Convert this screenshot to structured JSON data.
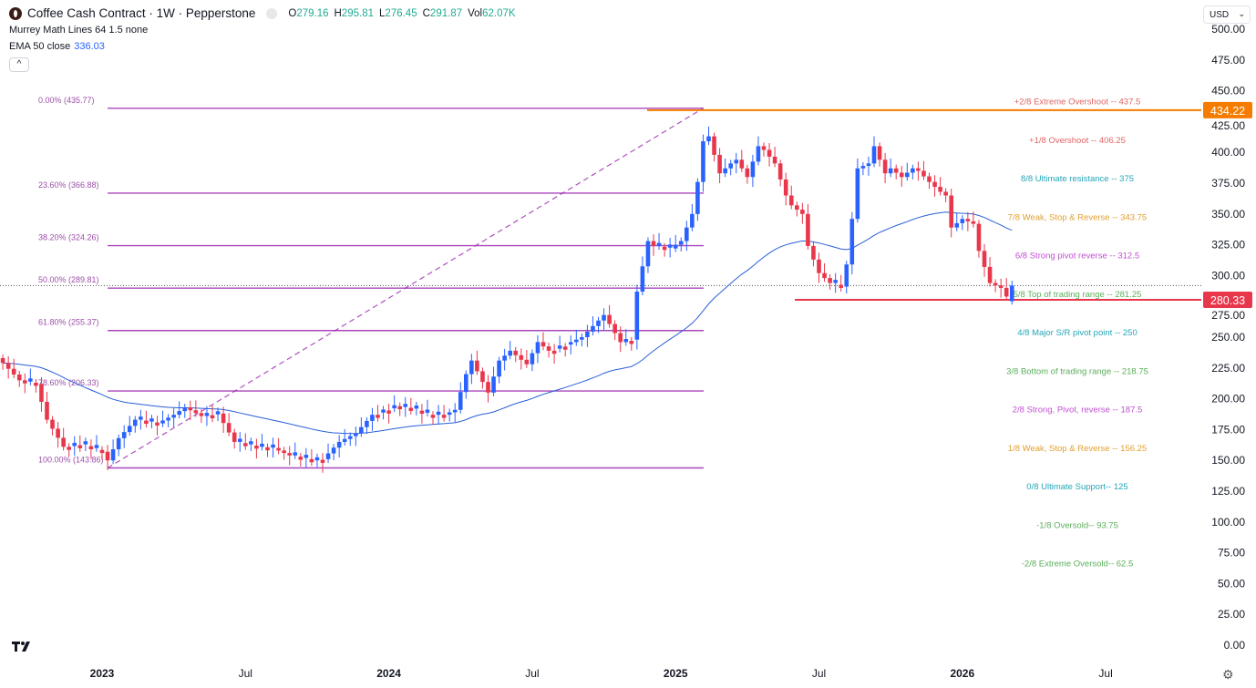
{
  "header": {
    "symbol": "Coffee Cash Contract · 1W · Pepperstone",
    "open_label": "O",
    "open": "279.16",
    "high_label": "H",
    "high": "295.81",
    "low_label": "L",
    "low": "276.45",
    "close_label": "C",
    "close": "291.87",
    "vol_label": "Vol",
    "vol": "62.07K",
    "indicator1": "Murrey Math Lines 64 1.5 none",
    "indicator2_label": "EMA 50 close",
    "indicator2_value": "336.03",
    "collapse_icon": "^"
  },
  "currency": {
    "label": "USD",
    "chevron": "⌄"
  },
  "tv_logo": "TV",
  "settings_icon": "⚙",
  "colors": {
    "up": "#2962ff",
    "down": "#e8374b",
    "ema": "#2a5fd8",
    "fib": "#9c27b0",
    "orange": "#f57c00",
    "red": "#e8374b"
  },
  "chart_data": {
    "type": "candlestick",
    "title": "Coffee Cash Contract · 1W · Pepperstone",
    "ylim": [
      0,
      500
    ],
    "y_ticks": [
      "500.00",
      "475.00",
      "450.00",
      "425.00",
      "400.00",
      "375.00",
      "350.00",
      "325.00",
      "300.00",
      "275.00",
      "250.00",
      "225.00",
      "200.00",
      "175.00",
      "150.00",
      "125.00",
      "100.00",
      "75.00",
      "50.00",
      "25.00",
      "0.00"
    ],
    "x_ticks": [
      {
        "label": "2023",
        "week": 0,
        "bold": true
      },
      {
        "label": "Jul",
        "week": 26
      },
      {
        "label": "2024",
        "week": 52,
        "bold": true
      },
      {
        "label": "Jul",
        "week": 78
      },
      {
        "label": "2025",
        "week": 104,
        "bold": true
      },
      {
        "label": "Jul",
        "week": 130
      },
      {
        "label": "2026",
        "week": 156,
        "bold": true
      },
      {
        "label": "Jul",
        "week": 182
      }
    ],
    "x_unit": "weeks since 2023-01-02",
    "weekly_close_keypoints": [
      [
        -18,
        229
      ],
      [
        -15,
        215
      ],
      [
        -12,
        212
      ],
      [
        -10,
        183
      ],
      [
        -7,
        161
      ],
      [
        -4,
        163
      ],
      [
        0,
        157
      ],
      [
        1,
        150
      ],
      [
        3,
        168
      ],
      [
        6,
        183
      ],
      [
        10,
        180
      ],
      [
        13,
        187
      ],
      [
        15,
        193
      ],
      [
        18,
        186
      ],
      [
        21,
        188
      ],
      [
        24,
        165
      ],
      [
        28,
        161
      ],
      [
        31,
        160
      ],
      [
        34,
        154
      ],
      [
        38,
        150
      ],
      [
        40,
        151
      ],
      [
        43,
        165
      ],
      [
        46,
        172
      ],
      [
        49,
        187
      ],
      [
        53,
        194
      ],
      [
        56,
        192
      ],
      [
        59,
        187
      ],
      [
        62,
        187
      ],
      [
        64,
        191
      ],
      [
        66,
        220
      ],
      [
        67,
        231
      ],
      [
        70,
        205
      ],
      [
        72,
        231
      ],
      [
        74,
        239
      ],
      [
        77,
        228
      ],
      [
        79,
        246
      ],
      [
        81,
        239
      ],
      [
        84,
        244
      ],
      [
        87,
        250
      ],
      [
        91,
        268
      ],
      [
        94,
        246
      ],
      [
        96,
        248
      ],
      [
        97,
        287
      ],
      [
        99,
        328
      ],
      [
        100,
        324
      ],
      [
        103,
        322
      ],
      [
        105,
        328
      ],
      [
        107,
        350
      ],
      [
        108,
        376
      ],
      [
        109,
        409
      ],
      [
        110,
        413
      ],
      [
        111,
        398
      ],
      [
        112,
        383
      ],
      [
        114,
        391
      ],
      [
        115,
        394
      ],
      [
        117,
        380
      ],
      [
        119,
        405
      ],
      [
        120,
        402
      ],
      [
        122,
        391
      ],
      [
        124,
        365
      ],
      [
        125,
        357
      ],
      [
        127,
        350
      ],
      [
        128,
        324
      ],
      [
        129,
        313
      ],
      [
        130,
        302
      ],
      [
        132,
        294
      ],
      [
        134,
        291
      ],
      [
        135,
        309
      ],
      [
        136,
        346
      ],
      [
        137,
        387
      ],
      [
        139,
        391
      ],
      [
        140,
        405
      ],
      [
        142,
        383
      ],
      [
        143,
        387
      ],
      [
        145,
        380
      ],
      [
        147,
        387
      ],
      [
        148,
        385
      ],
      [
        150,
        376
      ],
      [
        152,
        368
      ],
      [
        153,
        365
      ],
      [
        154,
        339
      ],
      [
        156,
        346
      ],
      [
        158,
        342
      ],
      [
        159,
        320
      ],
      [
        161,
        294
      ],
      [
        163,
        290
      ],
      [
        164,
        283
      ],
      [
        165,
        292
      ]
    ],
    "last_candle": {
      "open": 279.16,
      "high": 295.81,
      "low": 276.45,
      "close": 291.87
    },
    "ema_period": 50,
    "price_labels": [
      {
        "value": 434.22,
        "text": "434.22",
        "color": "#f57c00"
      },
      {
        "value": 280.33,
        "text": "280.33",
        "color": "#e8374b"
      }
    ],
    "fib": {
      "start_week": 1,
      "end_week": 109,
      "levels": [
        {
          "text": "0.00% (435.77)",
          "value": 435.77
        },
        {
          "text": "23.60% (366.88)",
          "value": 366.88
        },
        {
          "text": "38.20% (324.26)",
          "value": 324.26
        },
        {
          "text": "50.00% (289.81)",
          "value": 289.81
        },
        {
          "text": "61.80% (255.37)",
          "value": 255.37
        },
        {
          "text": "78.60% (206.33)",
          "value": 206.33
        },
        {
          "text": "100.00% (143.86)",
          "value": 143.86
        }
      ]
    },
    "murrey": [
      {
        "text": "+2/8 Extreme Overshoot --  437.5",
        "value": 437.5,
        "color": "#e06666"
      },
      {
        "text": "+1/8 Overshoot --  406.25",
        "value": 406.25,
        "color": "#e06666"
      },
      {
        "text": "8/8 Ultimate resistance --  375",
        "value": 375,
        "color": "#26a6b8"
      },
      {
        "text": "7/8 Weak, Stop & Reverse --  343.75",
        "value": 343.75,
        "color": "#e0a030"
      },
      {
        "text": "6/8 Strong pivot reverse --  312.5",
        "value": 312.5,
        "color": "#c050d0"
      },
      {
        "text": "5/8 Top of trading range --  281.25",
        "value": 281.25,
        "color": "#5cae5c"
      },
      {
        "text": "4/8 Major S/R pivot point --  250",
        "value": 250,
        "color": "#26a6b8"
      },
      {
        "text": "3/8 Bottom of trading range --  218.75",
        "value": 218.75,
        "color": "#5cae5c"
      },
      {
        "text": "2/8 Strong, Pivot, reverse --  187.5",
        "value": 187.5,
        "color": "#c050d0"
      },
      {
        "text": "1/8 Weak, Stop & Reverse --  156.25",
        "value": 156.25,
        "color": "#e0a030"
      },
      {
        "text": "0/8 Ultimate Support--  125",
        "value": 125,
        "color": "#26a6b8"
      },
      {
        "text": "-1/8 Oversold--  93.75",
        "value": 93.75,
        "color": "#5cae5c"
      },
      {
        "text": "-2/8 Extreme Oversold--  62.5",
        "value": 62.5,
        "color": "#5cae5c"
      }
    ]
  }
}
